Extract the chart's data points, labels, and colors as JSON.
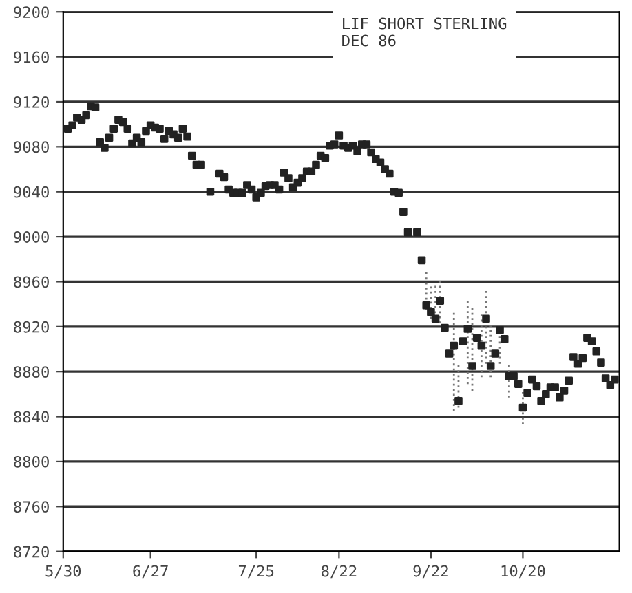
{
  "chart_data": {
    "type": "scatter",
    "title": "LIF SHORT STERLING\nDEC 86",
    "color": "#222222",
    "marker": "square",
    "grid": "y",
    "categories": [
      "5/30",
      null,
      null,
      null,
      null,
      null,
      null,
      null,
      null,
      null,
      null,
      null,
      null,
      null,
      null,
      null,
      null,
      null,
      null,
      "6/27",
      null,
      null,
      null,
      null,
      null,
      null,
      null,
      null,
      null,
      null,
      null,
      null,
      null,
      null,
      null,
      null,
      null,
      null,
      null,
      null,
      null,
      null,
      "7/25",
      null,
      null,
      null,
      null,
      null,
      null,
      null,
      null,
      null,
      null,
      null,
      null,
      null,
      null,
      null,
      null,
      null,
      "8/22",
      null,
      null,
      null,
      null,
      null,
      null,
      null,
      null,
      null,
      null,
      null,
      null,
      null,
      null,
      null,
      null,
      null,
      null,
      null,
      "9/22",
      null,
      null,
      null,
      null,
      null,
      null,
      null,
      null,
      null,
      null,
      null,
      null,
      null,
      null,
      null,
      null,
      null,
      null,
      null,
      "10/20",
      null,
      null,
      null,
      null,
      null,
      null,
      null,
      null,
      null,
      null,
      null,
      null,
      null,
      null,
      null,
      null,
      null,
      null,
      null,
      null
    ],
    "values": [
      null,
      9096,
      9099,
      9106,
      9104,
      9108,
      9116,
      9115,
      9084,
      9079,
      9088,
      9096,
      9104,
      9102,
      9096,
      9083,
      9088,
      9084,
      9094,
      9099,
      9097,
      9096,
      9087,
      9094,
      9091,
      9088,
      9096,
      9089,
      9072,
      9064,
      9064,
      null,
      9040,
      null,
      9056,
      9053,
      9042,
      9039,
      9039,
      9039,
      9046,
      9042,
      9035,
      9039,
      9045,
      9046,
      9046,
      9042,
      9057,
      9052,
      9044,
      9048,
      9052,
      9058,
      9058,
      9064,
      9072,
      9070,
      9081,
      9082,
      9090,
      9081,
      9079,
      9081,
      9076,
      9082,
      9082,
      9075,
      9069,
      9066,
      9060,
      9056,
      9040,
      9039,
      9022,
      9004,
      null,
      9004,
      8979,
      8939,
      8933,
      8927,
      8943,
      8919,
      8896,
      8903,
      8854,
      8907,
      8918,
      8885,
      8910,
      8903,
      8927,
      8885,
      8896,
      8917,
      8909,
      8876,
      8876,
      8869,
      8848,
      8861,
      8873,
      8867,
      8854,
      8860,
      8866,
      8866,
      8857,
      8863,
      8872,
      8893,
      8887,
      8892,
      8910,
      8907,
      8898,
      8888,
      8874,
      8868,
      8873
    ],
    "errors": [
      null,
      null,
      null,
      null,
      null,
      null,
      null,
      null,
      null,
      null,
      null,
      null,
      null,
      null,
      null,
      null,
      null,
      null,
      null,
      null,
      null,
      null,
      null,
      null,
      null,
      null,
      null,
      null,
      null,
      null,
      null,
      null,
      null,
      null,
      null,
      null,
      null,
      null,
      null,
      null,
      null,
      null,
      null,
      null,
      null,
      null,
      null,
      null,
      null,
      null,
      null,
      null,
      null,
      null,
      null,
      null,
      null,
      null,
      null,
      null,
      null,
      null,
      null,
      null,
      null,
      null,
      null,
      null,
      null,
      null,
      null,
      null,
      null,
      null,
      null,
      null,
      null,
      null,
      null,
      [
        8935,
        8971
      ],
      [
        8927,
        8959
      ],
      [
        8923,
        8959
      ],
      [
        8923,
        8962
      ],
      null,
      null,
      [
        8845,
        8935
      ],
      [
        8848,
        8887
      ],
      null,
      [
        8869,
        8943
      ],
      [
        8863,
        8939
      ],
      null,
      [
        8875,
        8931
      ],
      [
        8887,
        8953
      ],
      [
        8875,
        8923
      ],
      null,
      [
        8887,
        8923
      ],
      null,
      [
        8857,
        8887
      ],
      null,
      null,
      [
        8833,
        8863
      ],
      null,
      null,
      null,
      null,
      null,
      null,
      null,
      null,
      null,
      null,
      null,
      null,
      null,
      null,
      null,
      null,
      null,
      null,
      null,
      null
    ],
    "ylim": [
      8720,
      9200
    ],
    "yticks": [
      8720,
      8760,
      8800,
      8840,
      8880,
      8920,
      8960,
      9000,
      9040,
      9080,
      9120,
      9160,
      9200
    ]
  }
}
